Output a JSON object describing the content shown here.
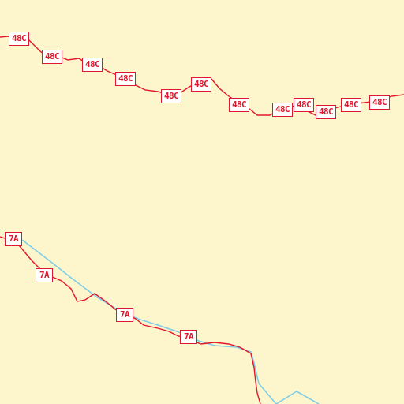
{
  "map": {
    "colors": {
      "background": "#fdf6cd",
      "road": "#e0182d",
      "border": "#7fcde7",
      "shield_fill": "#ffffff"
    },
    "routes": [
      {
        "id": "48c",
        "label": "48C",
        "shield_count": 12
      },
      {
        "id": "7a",
        "label": "7A",
        "shield_count": 4
      }
    ],
    "boundary": {
      "type": "administrative-border",
      "style": "light-blue line"
    }
  }
}
